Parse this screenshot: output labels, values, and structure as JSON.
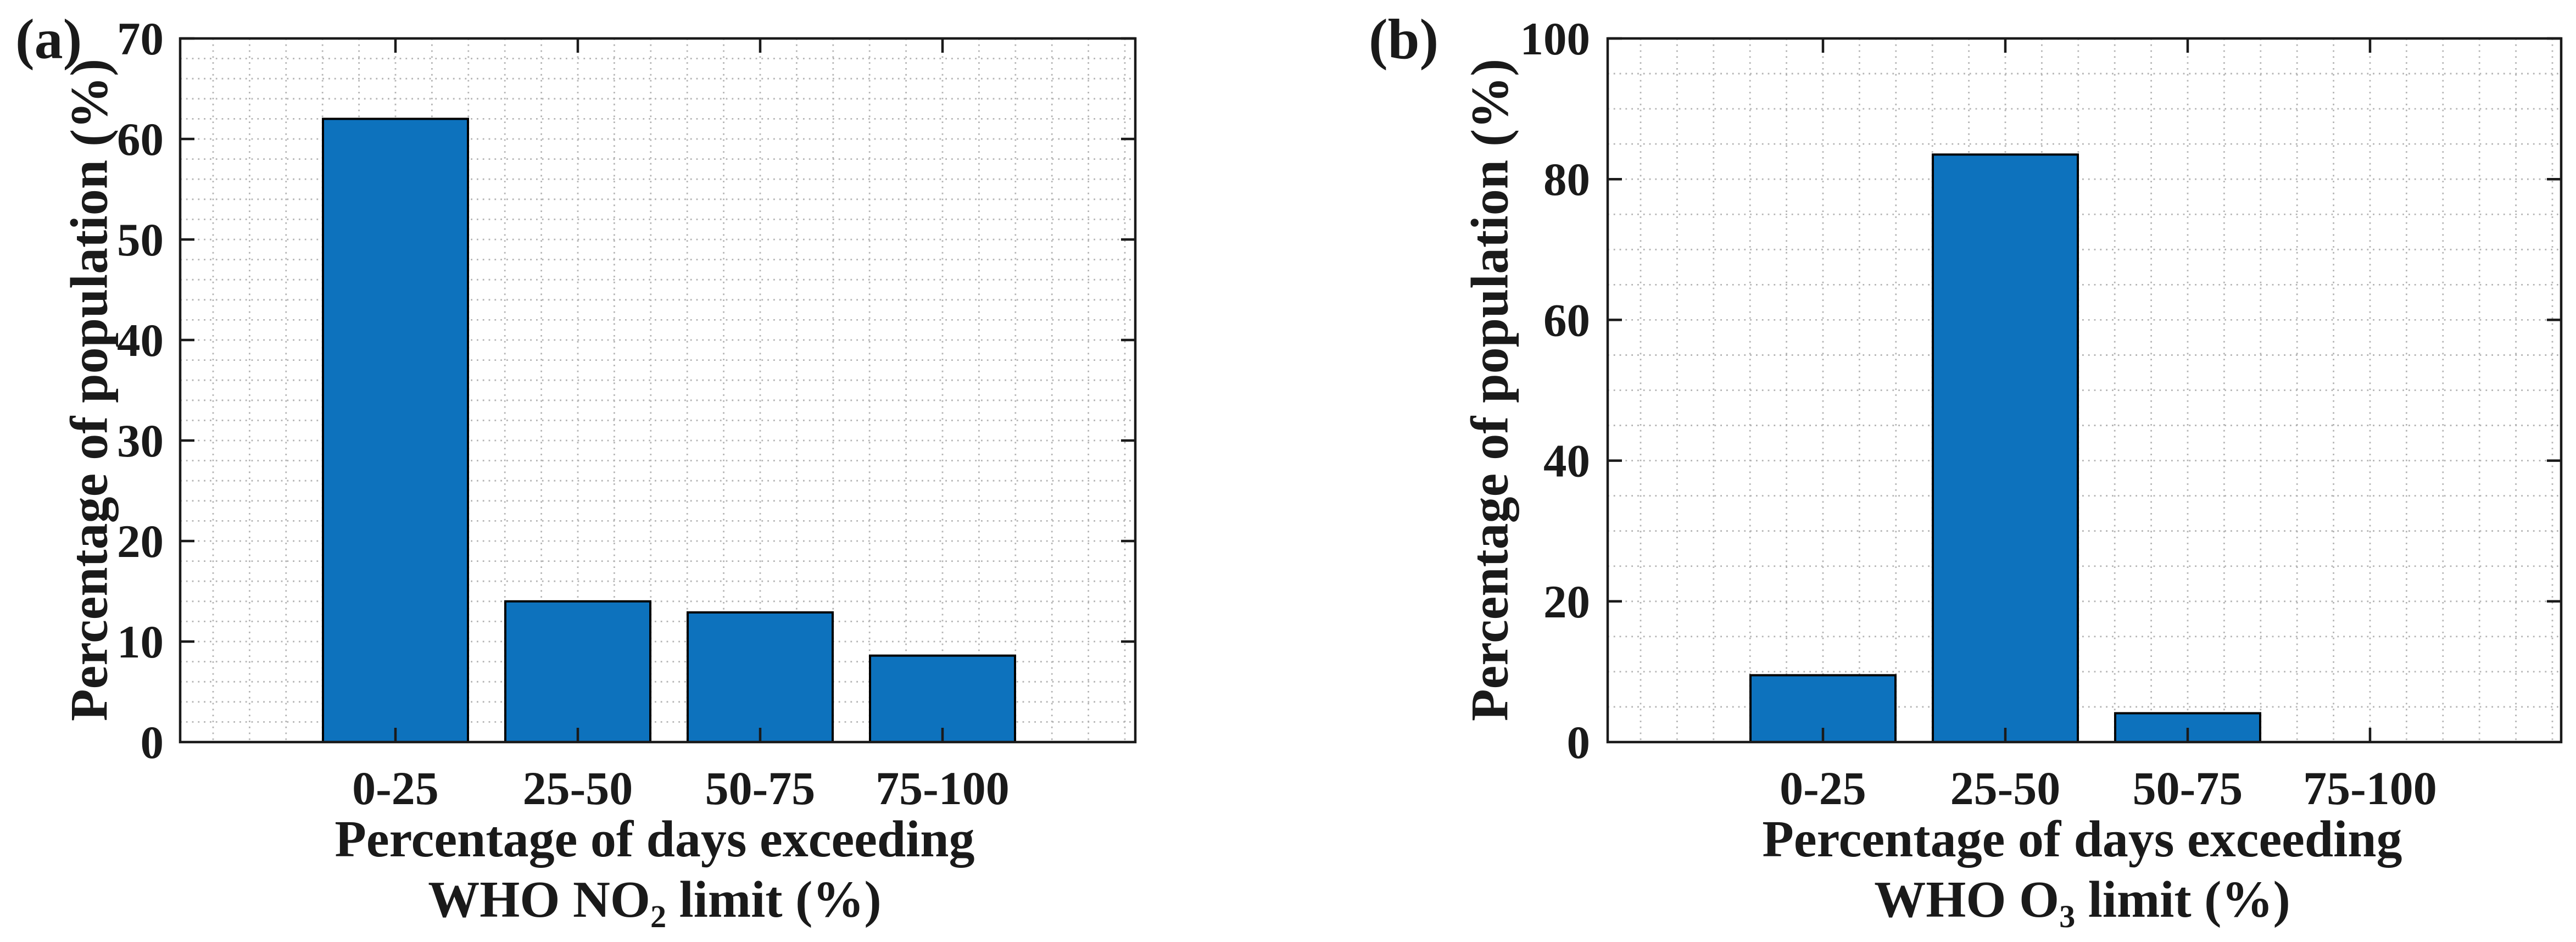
{
  "figure": {
    "background": "#ffffff",
    "colors": {
      "bar_fill": "#0d72bd",
      "bar_edge": "#000000",
      "axis": "#1a1a1a",
      "grid": "#b3b3b3",
      "text": "#1a1a1a"
    }
  },
  "chart_data": [
    {
      "type": "bar",
      "panel_label": "(a)",
      "categories": [
        "0-25",
        "25-50",
        "50-75",
        "75-100"
      ],
      "values": [
        62,
        14,
        12.9,
        8.6
      ],
      "title": "",
      "xlabel_line1": "Percentage of days exceeding",
      "xlabel_line2": {
        "pre": "WHO NO",
        "sub": "2",
        "post": " limit (%)"
      },
      "ylabel": "Percentage of population (%)",
      "ylim": [
        0,
        70
      ],
      "yticks": [
        0,
        10,
        20,
        30,
        40,
        50,
        60,
        70
      ],
      "y_minor_step": 2,
      "grid": "minor dotted, on",
      "legend": "none"
    },
    {
      "type": "bar",
      "panel_label": "(b)",
      "categories": [
        "0-25",
        "25-50",
        "50-75",
        "75-100"
      ],
      "values": [
        9.5,
        83.5,
        4.1,
        0
      ],
      "title": "",
      "xlabel_line1": "Percentage of days exceeding",
      "xlabel_line2": {
        "pre": "WHO O",
        "sub": "3",
        "post": " limit (%)"
      },
      "ylabel": "Percentage of population (%)",
      "ylim": [
        0,
        100
      ],
      "yticks": [
        0,
        20,
        40,
        60,
        80,
        100
      ],
      "y_minor_step": 5,
      "grid": "minor dotted, on",
      "legend": "none"
    }
  ]
}
